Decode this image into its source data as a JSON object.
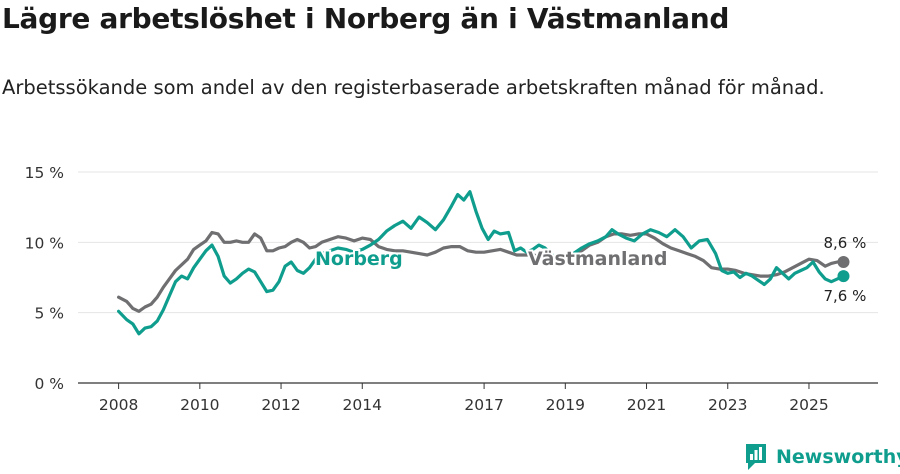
{
  "header": {
    "title": "Lägre arbetslöshet i Norberg än i Västmanland",
    "subtitle": "Arbetssökande som andel av den registerbaserade arbetskraften månad för månad."
  },
  "brand": {
    "name": "Newsworthy",
    "color": "#0f9d8e"
  },
  "chart_data": {
    "type": "line",
    "title": "Lägre arbetslöshet i Norberg än i Västmanland",
    "xlabel": "",
    "ylabel": "",
    "xlim": [
      2007.0,
      2026.7
    ],
    "ylim": [
      0,
      15
    ],
    "y_ticks": [
      0,
      5,
      10,
      15
    ],
    "y_tick_labels": [
      "0 %",
      "5 %",
      "10 %",
      "15 %"
    ],
    "x_ticks": [
      2008,
      2010,
      2012,
      2014,
      2017,
      2019,
      2021,
      2023,
      2025
    ],
    "x_tick_labels": [
      "2008",
      "2010",
      "2012",
      "2014",
      "2017",
      "2019",
      "2021",
      "2023",
      "2025"
    ],
    "grid": true,
    "series": [
      {
        "name": "Norberg",
        "color": "#0f9d8e",
        "end_label": "7,6 %",
        "points": [
          [
            2008.0,
            5.1
          ],
          [
            2008.2,
            4.5
          ],
          [
            2008.35,
            4.2
          ],
          [
            2008.5,
            3.5
          ],
          [
            2008.65,
            3.9
          ],
          [
            2008.8,
            4.0
          ],
          [
            2008.95,
            4.4
          ],
          [
            2009.1,
            5.2
          ],
          [
            2009.25,
            6.2
          ],
          [
            2009.4,
            7.2
          ],
          [
            2009.55,
            7.6
          ],
          [
            2009.7,
            7.4
          ],
          [
            2009.85,
            8.2
          ],
          [
            2010.0,
            8.8
          ],
          [
            2010.15,
            9.4
          ],
          [
            2010.3,
            9.8
          ],
          [
            2010.45,
            9.0
          ],
          [
            2010.6,
            7.6
          ],
          [
            2010.75,
            7.1
          ],
          [
            2010.9,
            7.4
          ],
          [
            2011.05,
            7.8
          ],
          [
            2011.2,
            8.1
          ],
          [
            2011.35,
            7.9
          ],
          [
            2011.5,
            7.2
          ],
          [
            2011.65,
            6.5
          ],
          [
            2011.8,
            6.6
          ],
          [
            2011.95,
            7.2
          ],
          [
            2012.1,
            8.3
          ],
          [
            2012.25,
            8.6
          ],
          [
            2012.4,
            8.0
          ],
          [
            2012.55,
            7.8
          ],
          [
            2012.7,
            8.2
          ],
          [
            2012.85,
            8.8
          ],
          [
            2013.0,
            9.2
          ],
          [
            2013.2,
            9.4
          ],
          [
            2013.4,
            9.6
          ],
          [
            2013.6,
            9.5
          ],
          [
            2013.8,
            9.3
          ],
          [
            2014.0,
            9.5
          ],
          [
            2014.2,
            9.8
          ],
          [
            2014.4,
            10.2
          ],
          [
            2014.6,
            10.8
          ],
          [
            2014.8,
            11.2
          ],
          [
            2015.0,
            11.5
          ],
          [
            2015.2,
            11.0
          ],
          [
            2015.4,
            11.8
          ],
          [
            2015.6,
            11.4
          ],
          [
            2015.8,
            10.9
          ],
          [
            2016.0,
            11.6
          ],
          [
            2016.2,
            12.6
          ],
          [
            2016.35,
            13.4
          ],
          [
            2016.5,
            13.0
          ],
          [
            2016.65,
            13.6
          ],
          [
            2016.8,
            12.2
          ],
          [
            2016.95,
            11.0
          ],
          [
            2017.1,
            10.2
          ],
          [
            2017.25,
            10.8
          ],
          [
            2017.4,
            10.6
          ],
          [
            2017.6,
            10.7
          ],
          [
            2017.75,
            9.4
          ],
          [
            2017.9,
            9.6
          ],
          [
            2018.05,
            9.3
          ],
          [
            2018.2,
            9.5
          ],
          [
            2018.35,
            9.8
          ],
          [
            2018.5,
            9.6
          ],
          [
            2018.65,
            9.2
          ],
          [
            2018.8,
            8.6
          ],
          [
            2019.0,
            8.9
          ],
          [
            2019.2,
            9.2
          ],
          [
            2019.4,
            9.6
          ],
          [
            2019.6,
            9.9
          ],
          [
            2019.8,
            10.1
          ],
          [
            2020.0,
            10.4
          ],
          [
            2020.15,
            10.9
          ],
          [
            2020.3,
            10.6
          ],
          [
            2020.5,
            10.3
          ],
          [
            2020.7,
            10.1
          ],
          [
            2020.9,
            10.6
          ],
          [
            2021.1,
            10.9
          ],
          [
            2021.3,
            10.7
          ],
          [
            2021.5,
            10.4
          ],
          [
            2021.7,
            10.9
          ],
          [
            2021.9,
            10.4
          ],
          [
            2022.1,
            9.6
          ],
          [
            2022.3,
            10.1
          ],
          [
            2022.5,
            10.2
          ],
          [
            2022.7,
            9.2
          ],
          [
            2022.85,
            8.0
          ],
          [
            2023.0,
            7.8
          ],
          [
            2023.15,
            7.9
          ],
          [
            2023.3,
            7.5
          ],
          [
            2023.45,
            7.8
          ],
          [
            2023.6,
            7.6
          ],
          [
            2023.75,
            7.3
          ],
          [
            2023.9,
            7.0
          ],
          [
            2024.05,
            7.4
          ],
          [
            2024.2,
            8.2
          ],
          [
            2024.35,
            7.8
          ],
          [
            2024.5,
            7.4
          ],
          [
            2024.65,
            7.8
          ],
          [
            2024.8,
            8.0
          ],
          [
            2024.95,
            8.2
          ],
          [
            2025.1,
            8.6
          ],
          [
            2025.25,
            7.9
          ],
          [
            2025.4,
            7.4
          ],
          [
            2025.55,
            7.2
          ],
          [
            2025.7,
            7.4
          ],
          [
            2025.85,
            7.6
          ]
        ]
      },
      {
        "name": "Västmanland",
        "color": "#6f6f71",
        "end_label": "8,6 %",
        "points": [
          [
            2008.0,
            6.1
          ],
          [
            2008.2,
            5.8
          ],
          [
            2008.35,
            5.3
          ],
          [
            2008.5,
            5.1
          ],
          [
            2008.65,
            5.4
          ],
          [
            2008.8,
            5.6
          ],
          [
            2008.95,
            6.1
          ],
          [
            2009.1,
            6.8
          ],
          [
            2009.25,
            7.4
          ],
          [
            2009.4,
            8.0
          ],
          [
            2009.55,
            8.4
          ],
          [
            2009.7,
            8.8
          ],
          [
            2009.85,
            9.5
          ],
          [
            2010.0,
            9.8
          ],
          [
            2010.15,
            10.1
          ],
          [
            2010.3,
            10.7
          ],
          [
            2010.45,
            10.6
          ],
          [
            2010.6,
            10.0
          ],
          [
            2010.75,
            10.0
          ],
          [
            2010.9,
            10.1
          ],
          [
            2011.05,
            10.0
          ],
          [
            2011.2,
            10.0
          ],
          [
            2011.35,
            10.6
          ],
          [
            2011.5,
            10.3
          ],
          [
            2011.65,
            9.4
          ],
          [
            2011.8,
            9.4
          ],
          [
            2011.95,
            9.6
          ],
          [
            2012.1,
            9.7
          ],
          [
            2012.25,
            10.0
          ],
          [
            2012.4,
            10.2
          ],
          [
            2012.55,
            10.0
          ],
          [
            2012.7,
            9.6
          ],
          [
            2012.85,
            9.7
          ],
          [
            2013.0,
            10.0
          ],
          [
            2013.2,
            10.2
          ],
          [
            2013.4,
            10.4
          ],
          [
            2013.6,
            10.3
          ],
          [
            2013.8,
            10.1
          ],
          [
            2014.0,
            10.3
          ],
          [
            2014.2,
            10.2
          ],
          [
            2014.4,
            9.7
          ],
          [
            2014.6,
            9.5
          ],
          [
            2014.8,
            9.4
          ],
          [
            2015.0,
            9.4
          ],
          [
            2015.2,
            9.3
          ],
          [
            2015.4,
            9.2
          ],
          [
            2015.6,
            9.1
          ],
          [
            2015.8,
            9.3
          ],
          [
            2016.0,
            9.6
          ],
          [
            2016.2,
            9.7
          ],
          [
            2016.4,
            9.7
          ],
          [
            2016.6,
            9.4
          ],
          [
            2016.8,
            9.3
          ],
          [
            2017.0,
            9.3
          ],
          [
            2017.2,
            9.4
          ],
          [
            2017.4,
            9.5
          ],
          [
            2017.6,
            9.3
          ],
          [
            2017.8,
            9.1
          ],
          [
            2018.0,
            9.1
          ],
          [
            2018.2,
            9.1
          ],
          [
            2018.4,
            9.0
          ],
          [
            2018.6,
            8.9
          ],
          [
            2018.8,
            8.8
          ],
          [
            2019.0,
            8.8
          ],
          [
            2019.2,
            9.1
          ],
          [
            2019.4,
            9.4
          ],
          [
            2019.6,
            9.8
          ],
          [
            2019.8,
            10.0
          ],
          [
            2020.0,
            10.4
          ],
          [
            2020.2,
            10.6
          ],
          [
            2020.4,
            10.6
          ],
          [
            2020.6,
            10.5
          ],
          [
            2020.8,
            10.6
          ],
          [
            2021.0,
            10.6
          ],
          [
            2021.2,
            10.3
          ],
          [
            2021.4,
            9.9
          ],
          [
            2021.6,
            9.6
          ],
          [
            2021.8,
            9.4
          ],
          [
            2022.0,
            9.2
          ],
          [
            2022.2,
            9.0
          ],
          [
            2022.4,
            8.7
          ],
          [
            2022.6,
            8.2
          ],
          [
            2022.8,
            8.1
          ],
          [
            2023.0,
            8.1
          ],
          [
            2023.2,
            8.0
          ],
          [
            2023.4,
            7.8
          ],
          [
            2023.6,
            7.7
          ],
          [
            2023.8,
            7.6
          ],
          [
            2024.0,
            7.6
          ],
          [
            2024.2,
            7.7
          ],
          [
            2024.4,
            7.9
          ],
          [
            2024.6,
            8.2
          ],
          [
            2024.8,
            8.5
          ],
          [
            2025.0,
            8.8
          ],
          [
            2025.2,
            8.7
          ],
          [
            2025.4,
            8.3
          ],
          [
            2025.55,
            8.5
          ],
          [
            2025.7,
            8.6
          ],
          [
            2025.85,
            8.6
          ]
        ]
      }
    ]
  }
}
